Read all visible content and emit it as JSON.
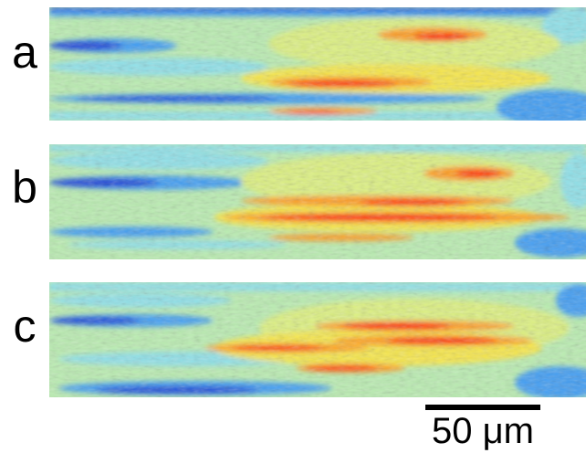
{
  "figure": {
    "panels": [
      {
        "label": "a",
        "icon": "heatmap-image"
      },
      {
        "label": "b",
        "icon": "heatmap-image"
      },
      {
        "label": "c",
        "icon": "heatmap-image"
      }
    ],
    "scale_bar": {
      "label": "50 μm"
    },
    "colormap": [
      "#1a3fd6",
      "#3f9cf2",
      "#8ee0e8",
      "#b9ecb0",
      "#dcf080",
      "#f6e64a",
      "#ff9a1c",
      "#ff1f10"
    ]
  }
}
